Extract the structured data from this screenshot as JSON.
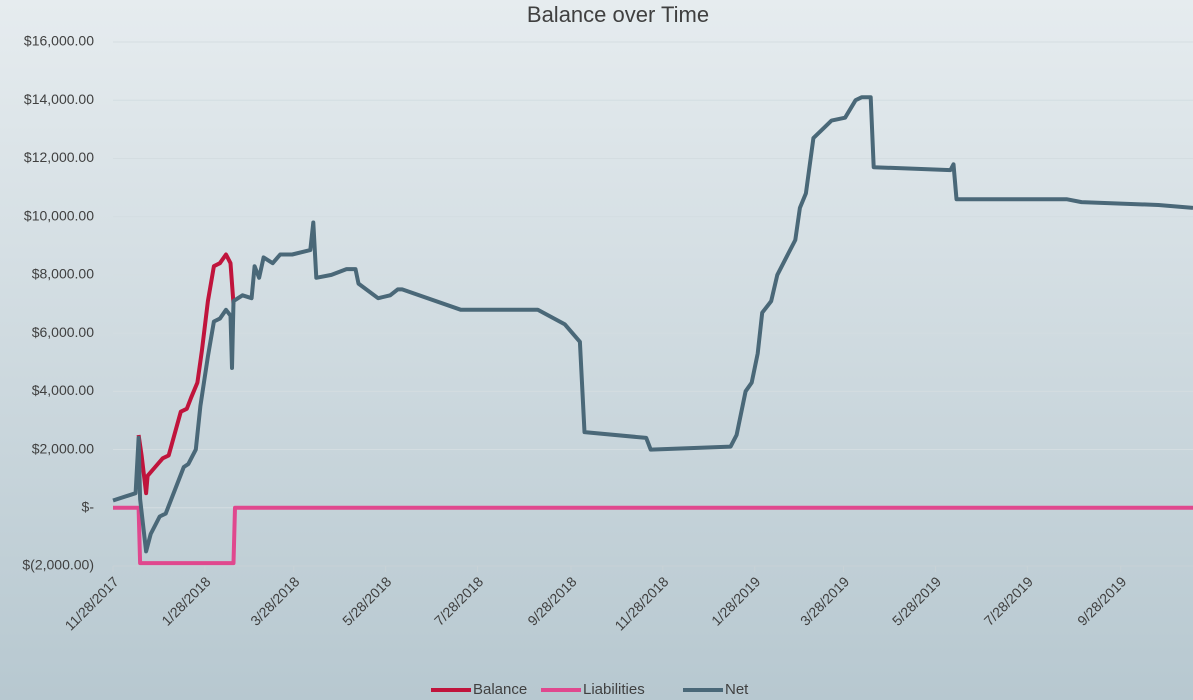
{
  "chart_data": {
    "type": "line",
    "title": "Balance over Time",
    "xlim": [
      "2017-11-28",
      "2019-11-15"
    ],
    "xticks": [
      {
        "value": "2017-11-28",
        "label": "11/28/2017"
      },
      {
        "value": "2018-01-28",
        "label": "1/28/2018"
      },
      {
        "value": "2018-03-28",
        "label": "3/28/2018"
      },
      {
        "value": "2018-05-28",
        "label": "5/28/2018"
      },
      {
        "value": "2018-07-28",
        "label": "7/28/2018"
      },
      {
        "value": "2018-09-28",
        "label": "9/28/2018"
      },
      {
        "value": "2018-11-28",
        "label": "11/28/2018"
      },
      {
        "value": "2019-01-28",
        "label": "1/28/2019"
      },
      {
        "value": "2019-03-28",
        "label": "3/28/2019"
      },
      {
        "value": "2019-05-28",
        "label": "5/28/2019"
      },
      {
        "value": "2019-07-28",
        "label": "7/28/2019"
      },
      {
        "value": "2019-09-28",
        "label": "9/28/2019"
      }
    ],
    "ylim": [
      -2000,
      16000
    ],
    "yticks": [
      {
        "value": -2000,
        "label": "$(2,000.00)"
      },
      {
        "value": 0,
        "label": "$-"
      },
      {
        "value": 2000,
        "label": "$2,000.00"
      },
      {
        "value": 4000,
        "label": "$4,000.00"
      },
      {
        "value": 6000,
        "label": "$6,000.00"
      },
      {
        "value": 8000,
        "label": "$8,000.00"
      },
      {
        "value": 10000,
        "label": "$10,000.00"
      },
      {
        "value": 12000,
        "label": "$12,000.00"
      },
      {
        "value": 14000,
        "label": "$14,000.00"
      },
      {
        "value": 16000,
        "label": "$16,000.00"
      }
    ],
    "grid": true,
    "legend": "bottom",
    "series": [
      {
        "name": "Balance",
        "color": "#c0143c",
        "x": [
          "2017-12-15",
          "2017-12-17",
          "2017-12-20",
          "2017-12-21",
          "2017-12-26",
          "2017-12-31",
          "2018-01-04",
          "2018-01-12",
          "2018-01-16",
          "2018-01-19",
          "2018-01-23",
          "2018-01-26",
          "2018-01-30",
          "2018-02-03",
          "2018-02-07",
          "2018-02-11",
          "2018-02-14",
          "2018-02-16"
        ],
        "values": [
          2500,
          1800,
          500,
          1100,
          1400,
          1700,
          1800,
          3300,
          3400,
          3800,
          4300,
          5400,
          7100,
          8300,
          8400,
          8700,
          8400,
          7000
        ]
      },
      {
        "name": "Liabilities",
        "color": "#e0488e",
        "x": [
          "2017-11-28",
          "2017-12-15",
          "2017-12-16",
          "2018-02-16",
          "2018-02-17",
          "2019-11-15"
        ],
        "values": [
          0,
          0,
          -1900,
          -1900,
          0,
          0
        ]
      },
      {
        "name": "Net",
        "color": "#4a6878",
        "x": [
          "2017-11-28",
          "2017-12-13",
          "2017-12-15",
          "2017-12-16",
          "2017-12-20",
          "2017-12-23",
          "2017-12-29",
          "2018-01-02",
          "2018-01-14",
          "2018-01-17",
          "2018-01-22",
          "2018-01-25",
          "2018-01-30",
          "2018-02-03",
          "2018-02-07",
          "2018-02-11",
          "2018-02-14",
          "2018-02-15",
          "2018-02-16",
          "2018-02-22",
          "2018-02-28",
          "2018-03-02",
          "2018-03-05",
          "2018-03-08",
          "2018-03-14",
          "2018-03-19",
          "2018-03-27",
          "2018-04-08",
          "2018-04-10",
          "2018-04-12",
          "2018-04-22",
          "2018-05-02",
          "2018-05-08",
          "2018-05-10",
          "2018-05-23",
          "2018-05-31",
          "2018-06-05",
          "2018-06-08",
          "2018-07-17",
          "2018-09-06",
          "2018-09-24",
          "2018-10-04",
          "2018-10-07",
          "2018-11-17",
          "2018-11-20",
          "2019-01-12",
          "2019-01-16",
          "2019-01-22",
          "2019-01-26",
          "2019-01-30",
          "2019-02-02",
          "2019-02-08",
          "2019-02-12",
          "2019-02-18",
          "2019-02-24",
          "2019-02-27",
          "2019-03-03",
          "2019-03-08",
          "2019-03-20",
          "2019-03-29",
          "2019-04-05",
          "2019-04-09",
          "2019-04-15",
          "2019-04-17",
          "2019-06-07",
          "2019-06-09",
          "2019-06-11",
          "2019-08-23",
          "2019-09-02",
          "2019-10-23",
          "2019-11-15"
        ],
        "values": [
          250,
          500,
          2400,
          300,
          -1500,
          -900,
          -300,
          -200,
          1400,
          1500,
          2000,
          3500,
          5200,
          6400,
          6500,
          6800,
          6600,
          4800,
          7100,
          7300,
          7200,
          8300,
          7900,
          8600,
          8400,
          8700,
          8700,
          8850,
          9800,
          7900,
          8000,
          8200,
          8200,
          7700,
          7200,
          7300,
          7500,
          7500,
          6800,
          6800,
          6300,
          5700,
          2600,
          2400,
          2000,
          2100,
          2500,
          4000,
          4300,
          5300,
          6700,
          7100,
          8000,
          8600,
          9200,
          10300,
          10800,
          12700,
          13300,
          13400,
          14000,
          14100,
          14100,
          11700,
          11600,
          11800,
          10600,
          10600,
          10500,
          10400,
          10300
        ]
      }
    ]
  }
}
